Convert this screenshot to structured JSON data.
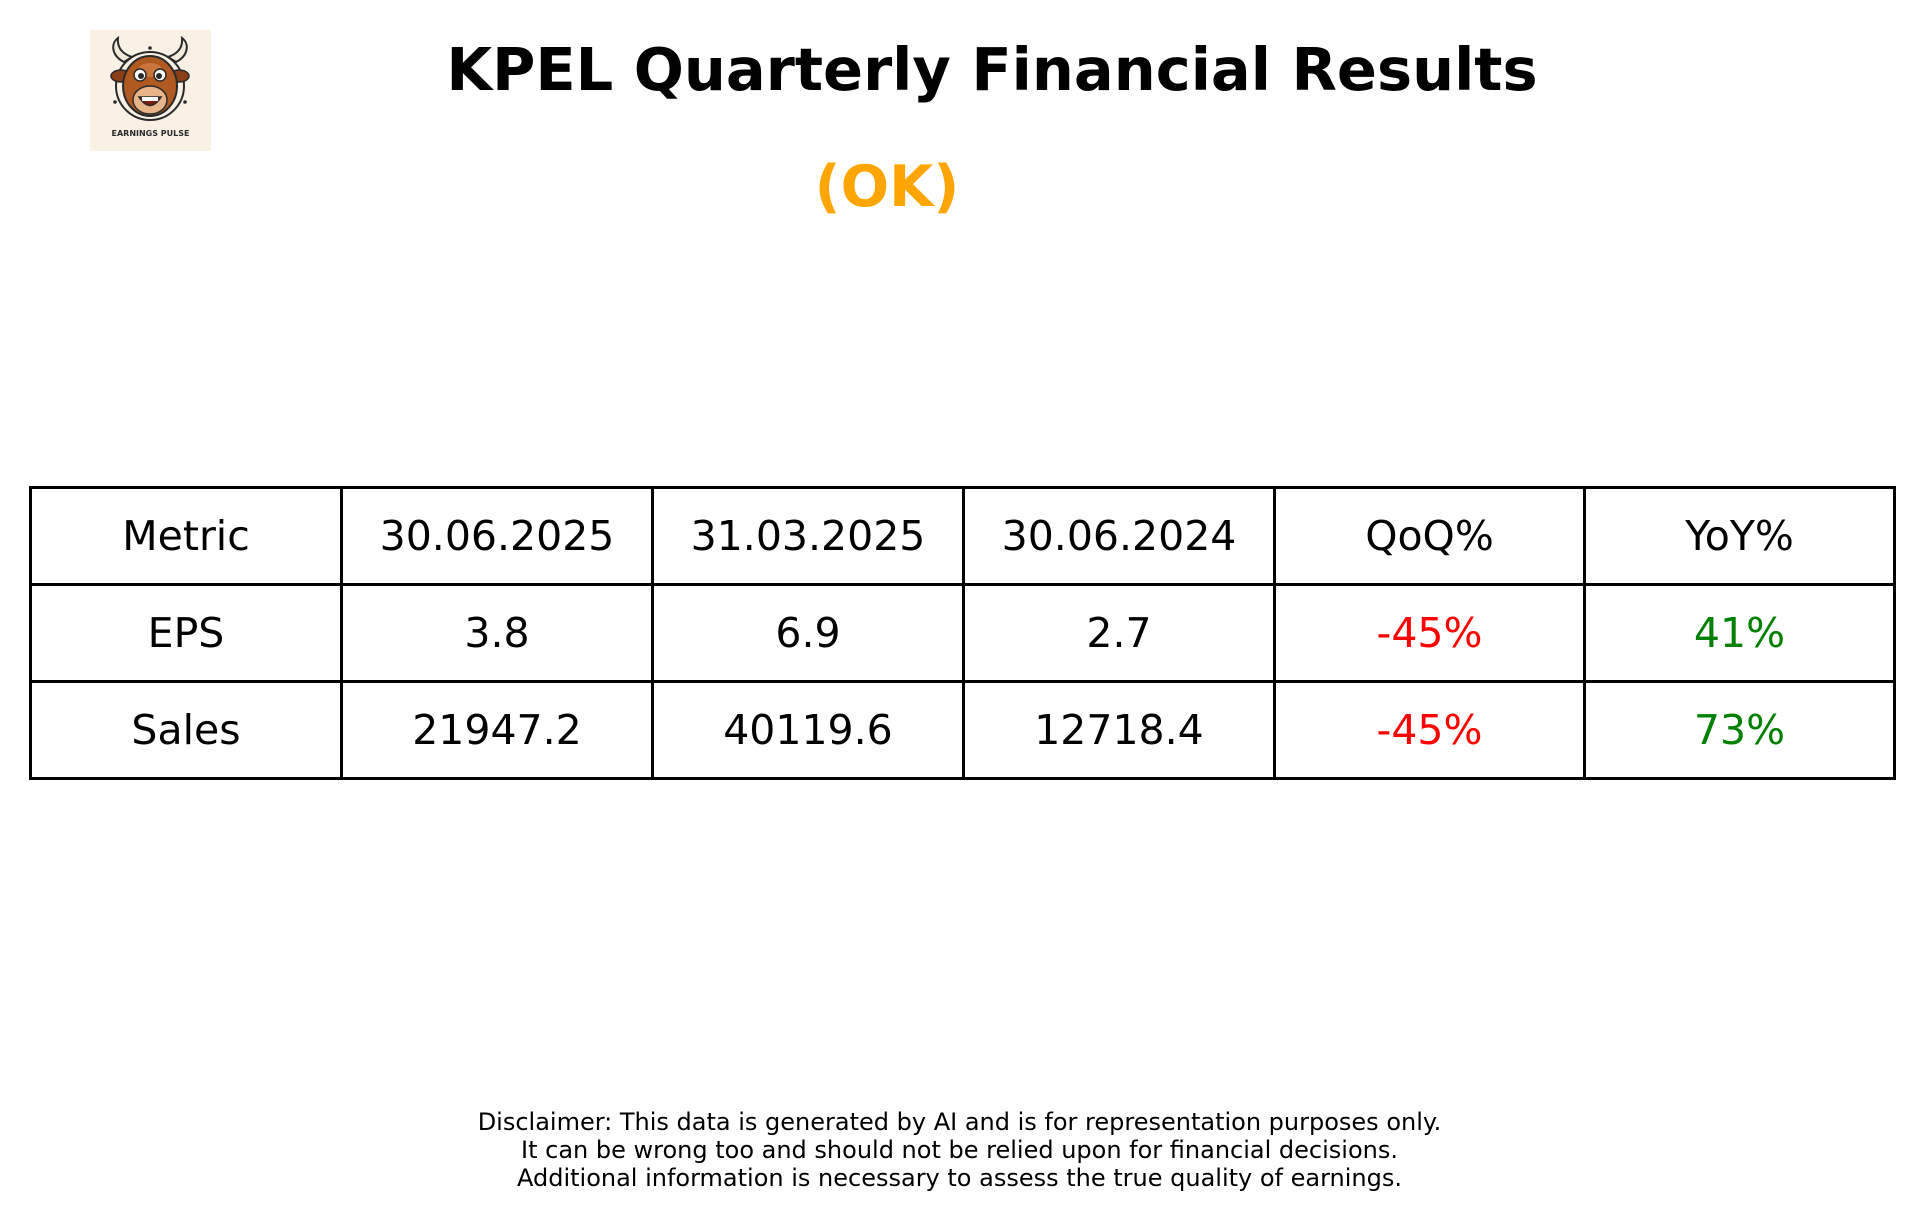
{
  "logo": {
    "icon": "bull-mascot-icon",
    "caption": "EARNINGS PULSE",
    "background": "#f8f1e4"
  },
  "title": "KPEL Quarterly Financial Results",
  "status": {
    "text": "(OK)",
    "color": "#ffa500"
  },
  "colors": {
    "negative": "#ff0000",
    "positive": "#008000",
    "border": "#000000"
  },
  "chart_data": {
    "type": "table",
    "columns": [
      "Metric",
      "30.06.2025",
      "31.03.2025",
      "30.06.2024",
      "QoQ%",
      "YoY%"
    ],
    "rows": [
      {
        "metric": "EPS",
        "values": [
          "3.8",
          "6.9",
          "2.7"
        ],
        "qoq": "-45%",
        "qoq_color": "#ff0000",
        "yoy": "41%",
        "yoy_color": "#008000"
      },
      {
        "metric": "Sales",
        "values": [
          "21947.2",
          "40119.6",
          "12718.4"
        ],
        "qoq": "-45%",
        "qoq_color": "#ff0000",
        "yoy": "73%",
        "yoy_color": "#008000"
      }
    ]
  },
  "disclaimer": [
    "Disclaimer: This data is generated by AI and is for representation purposes only.",
    "It can be wrong too and should not be relied upon for financial decisions.",
    "Additional information is necessary to assess the true quality of earnings."
  ]
}
